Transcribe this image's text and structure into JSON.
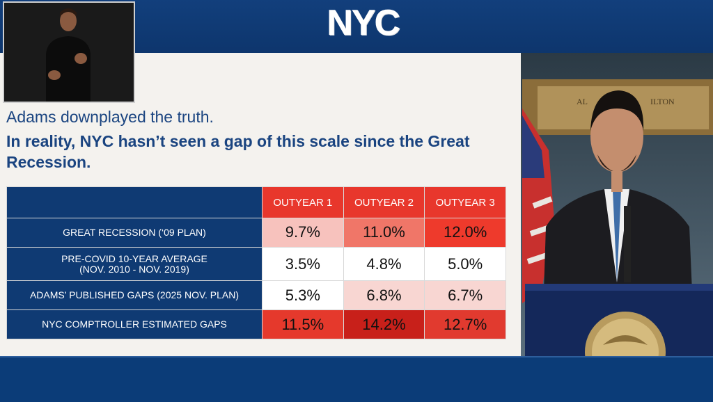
{
  "broadcast": {
    "logo_text": "NYC"
  },
  "slide": {
    "line1": "Adams downplayed the truth.",
    "line2": "In reality, NYC hasn’t seen a gap of this scale since the Great Recession."
  },
  "table": {
    "columns": [
      "OUTYEAR 1",
      "OUTYEAR 2",
      "OUTYEAR 3"
    ],
    "rows": [
      {
        "label_a": "GREAT RECESSION (‘09 PLAN)",
        "label_b": "",
        "values": [
          "9.7%",
          "11.0%",
          "12.0%"
        ],
        "colors": [
          "#f7c2bd",
          "#f07668",
          "#ee3a2c"
        ]
      },
      {
        "label_a": "PRE-COVID 10-YEAR AVERAGE",
        "label_b": "(NOV. 2010 - NOV. 2019)",
        "values": [
          "3.5%",
          "4.8%",
          "5.0%"
        ],
        "colors": [
          "#ffffff",
          "#ffffff",
          "#ffffff"
        ]
      },
      {
        "label_a": "ADAMS’ PUBLISHED GAPS (2025 NOV.  PLAN)",
        "label_b": "",
        "values": [
          "5.3%",
          "6.8%",
          "6.7%"
        ],
        "colors": [
          "#ffffff",
          "#f8d6d2",
          "#f8d6d2"
        ]
      },
      {
        "label_a": "NYC COMPTROLLER ESTIMATED GAPS",
        "label_b": "",
        "values": [
          "11.5%",
          "14.2%",
          "12.7%"
        ],
        "colors": [
          "#e5392c",
          "#c8201a",
          "#e13a2f"
        ]
      }
    ]
  },
  "speaker_feed": {
    "plaque_text_1": "AL",
    "plaque_text_2": "ILTON"
  }
}
